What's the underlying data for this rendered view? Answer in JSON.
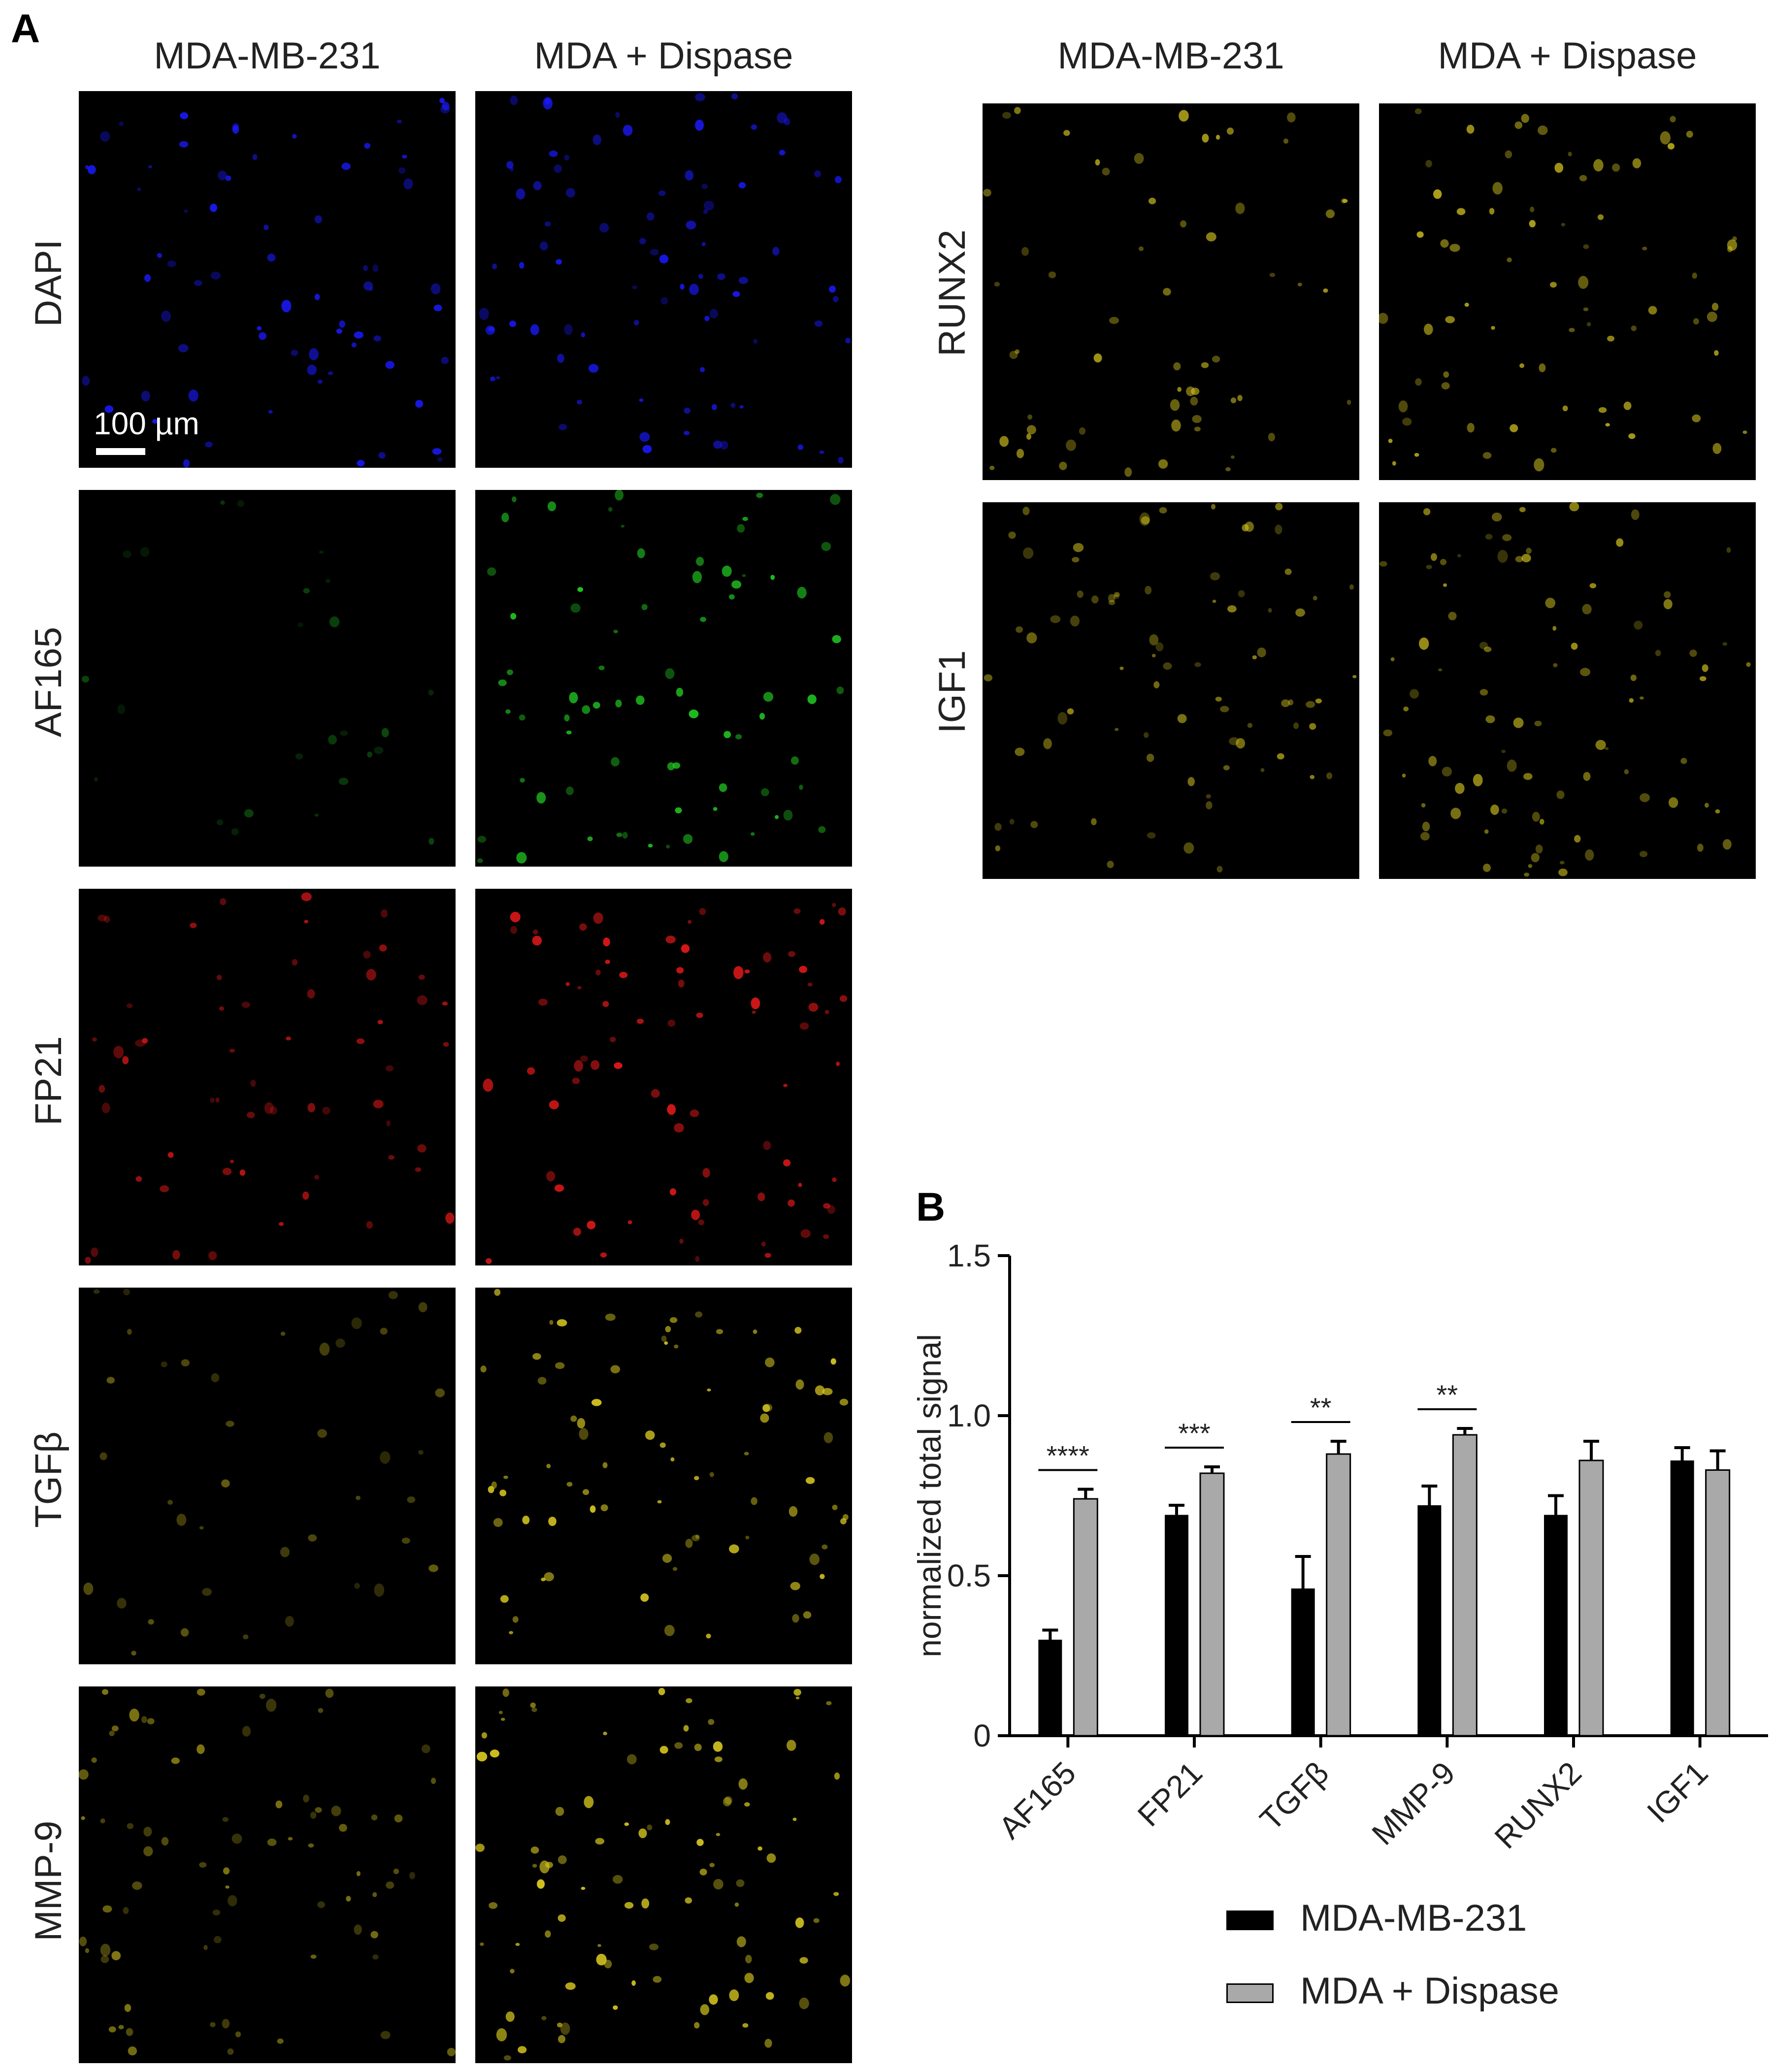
{
  "panel_a": {
    "letter": "A",
    "columns": [
      "MDA-MB-231",
      "MDA + Dispase"
    ],
    "left_rows": [
      {
        "label": "DAPI",
        "color": "#1a1aff",
        "density": [
          70,
          85
        ],
        "glow": [
          0.9,
          0.9
        ]
      },
      {
        "label": "AF165",
        "color": "#22cc22",
        "density": [
          25,
          75
        ],
        "glow": [
          0.35,
          0.95
        ]
      },
      {
        "label": "FP21",
        "color": "#e01818",
        "density": [
          60,
          80
        ],
        "glow": [
          0.8,
          0.95
        ]
      },
      {
        "label": "TGFβ",
        "color": "#d8c820",
        "density": [
          40,
          80
        ],
        "glow": [
          0.45,
          0.95
        ]
      },
      {
        "label": "MMP-9",
        "color": "#d8c820",
        "density": [
          75,
          95
        ],
        "glow": [
          0.6,
          0.95
        ]
      }
    ],
    "right_rows": [
      {
        "label": "RUNX2",
        "color": "#d8c820",
        "density": [
          60,
          75
        ],
        "glow": [
          0.75,
          0.8
        ]
      },
      {
        "label": "IGF1",
        "color": "#d8c820",
        "density": [
          80,
          90
        ],
        "glow": [
          0.65,
          0.7
        ]
      }
    ],
    "scale_bar": "100 µm"
  },
  "panel_b": {
    "letter": "B",
    "chart_data": {
      "type": "bar",
      "categories": [
        "AF165",
        "FP21",
        "TGFβ",
        "MMP-9",
        "RUNX2",
        "IGF1"
      ],
      "series": [
        {
          "name": "MDA-MB-231",
          "color": "#000000",
          "values": [
            0.3,
            0.69,
            0.46,
            0.72,
            0.69,
            0.86
          ],
          "errors": [
            0.03,
            0.03,
            0.1,
            0.06,
            0.06,
            0.04
          ]
        },
        {
          "name": "MDA + Dispase",
          "color": "#a9a9a9",
          "values": [
            0.74,
            0.82,
            0.88,
            0.94,
            0.86,
            0.83
          ],
          "errors": [
            0.03,
            0.02,
            0.04,
            0.02,
            0.06,
            0.06
          ]
        }
      ],
      "ylabel": "normalized total signal",
      "yticks": [
        "0",
        "0.5",
        "1.0",
        "1.5"
      ],
      "ylim": [
        0,
        1.5
      ],
      "significance": [
        {
          "category": "AF165",
          "label": "****"
        },
        {
          "category": "FP21",
          "label": "***"
        },
        {
          "category": "TGFβ",
          "label": "**"
        },
        {
          "category": "MMP-9",
          "label": "**"
        }
      ],
      "legend_position": "bottom"
    }
  }
}
